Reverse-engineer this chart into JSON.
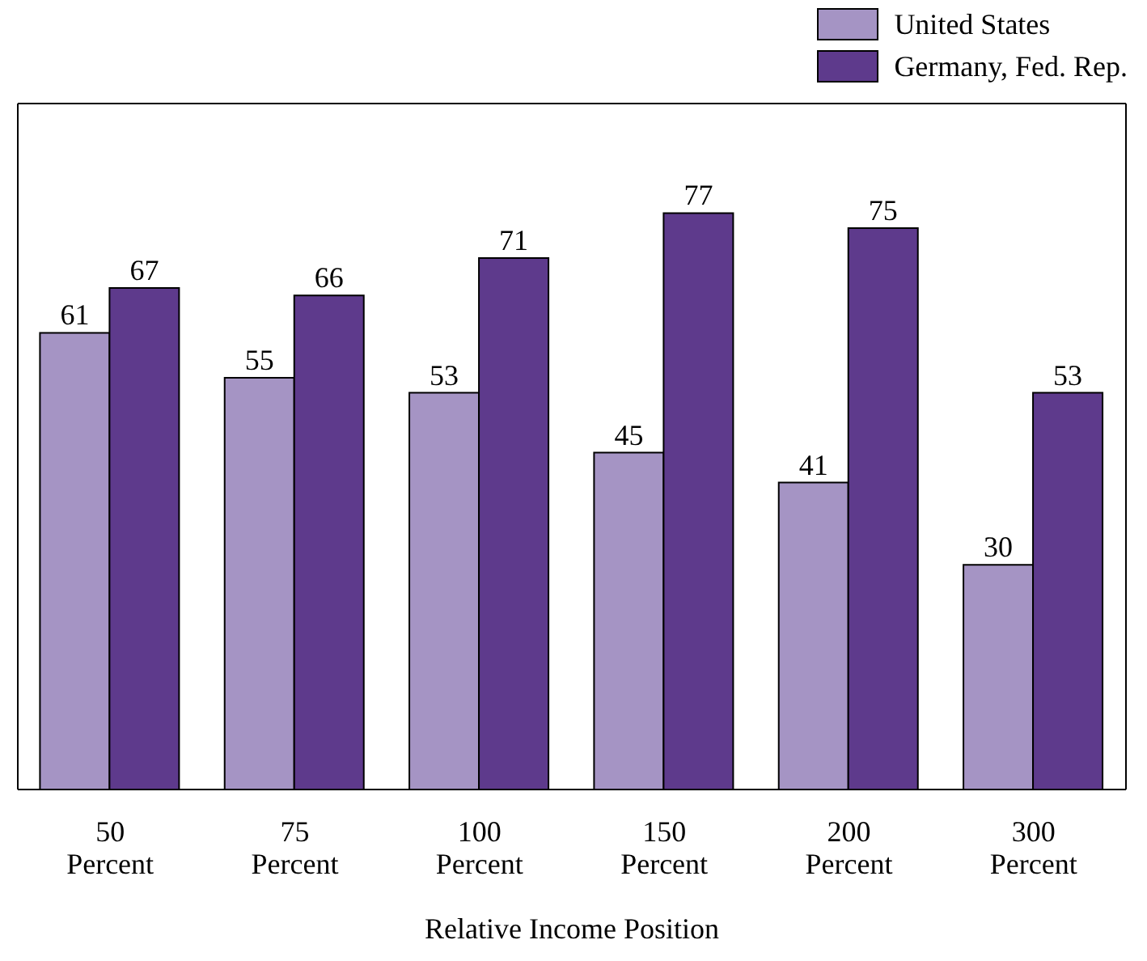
{
  "chart_data": {
    "type": "bar",
    "xlabel": "Relative Income Position",
    "categories": [
      "50 Percent",
      "75 Percent",
      "100 Percent",
      "150 Percent",
      "200 Percent",
      "300 Percent"
    ],
    "series": [
      {
        "name": "United States",
        "color": "#a594c4",
        "values": [
          61,
          55,
          53,
          45,
          41,
          30
        ]
      },
      {
        "name": "Germany, Fed. Rep.",
        "color": "#5e3a8c",
        "values": [
          67,
          66,
          71,
          77,
          75,
          53
        ]
      }
    ],
    "data_labels": true,
    "legend": "top right"
  }
}
